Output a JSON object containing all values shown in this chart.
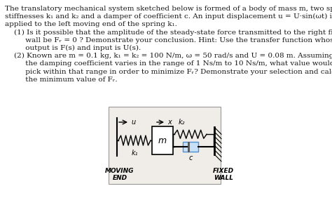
{
  "background_color": "#ffffff",
  "text_color": "#1a1a1a",
  "lines": [
    "The translatory mechanical system sketched below is formed of a body of mass m, two springs of",
    "stiffnesses k₁ and k₂ and a damper of coefficient c. An input displacement u = U·sin(ωt) is",
    "applied to the left moving end of the spring k₁.",
    "    (1) Is it possible that the amplitude of the steady-state force transmitted to the right fixed",
    "         wall be Fᵣ = 0 ? Demonstrate your conclusion. Hint: Use the transfer function whose",
    "         output is F(s) and input is U(s).",
    "    (2) Known are m = 0.1 kg, k₁ = k₂ = 100 N/m, ω = 50 rad/s and U = 0.08 m. Assuming that",
    "         the damping coefficient varies in the range of 1 Ns/m to 10 Ns/m, what value would you",
    "         pick within that range in order to minimize Fᵣ? Demonstrate your selection and calculate",
    "         the minimum value of Fᵣ."
  ],
  "font_size": 7.5,
  "diagram": {
    "mass_label": "m",
    "spring1_label": "k₁",
    "spring2_label": "k₂",
    "damper_label": "c",
    "left_label": "MOVING\nEND",
    "right_label": "FIXED\nWALL",
    "u_label": "u",
    "x_label": "x"
  }
}
